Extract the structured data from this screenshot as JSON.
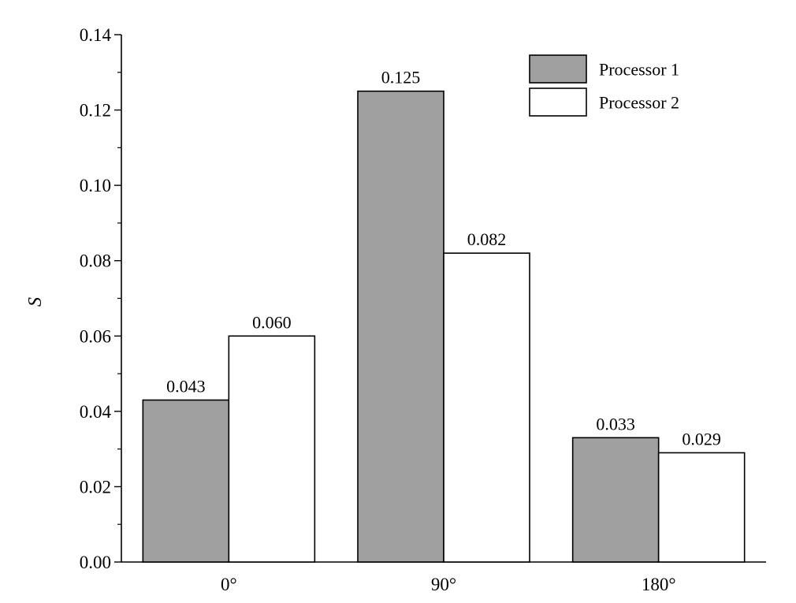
{
  "chart_data": {
    "type": "bar",
    "title": "",
    "xlabel": "",
    "ylabel": "S",
    "ylim": [
      0,
      0.14
    ],
    "yticks": [
      "0.00",
      "0.02",
      "0.04",
      "0.06",
      "0.08",
      "0.10",
      "0.12",
      "0.14"
    ],
    "yminor_step": 0.01,
    "categories": [
      "0°",
      "90°",
      "180°"
    ],
    "series": [
      {
        "name": "Processor 1",
        "values": [
          0.043,
          0.125,
          0.033
        ],
        "labels": [
          "0.043",
          "0.125",
          "0.033"
        ],
        "color": "#a0a0a0"
      },
      {
        "name": "Processor 2",
        "values": [
          0.06,
          0.082,
          0.029
        ],
        "labels": [
          "0.060",
          "0.082",
          "0.029"
        ],
        "color": "#ffffff"
      }
    ],
    "legend": "top-right",
    "grid": false
  }
}
